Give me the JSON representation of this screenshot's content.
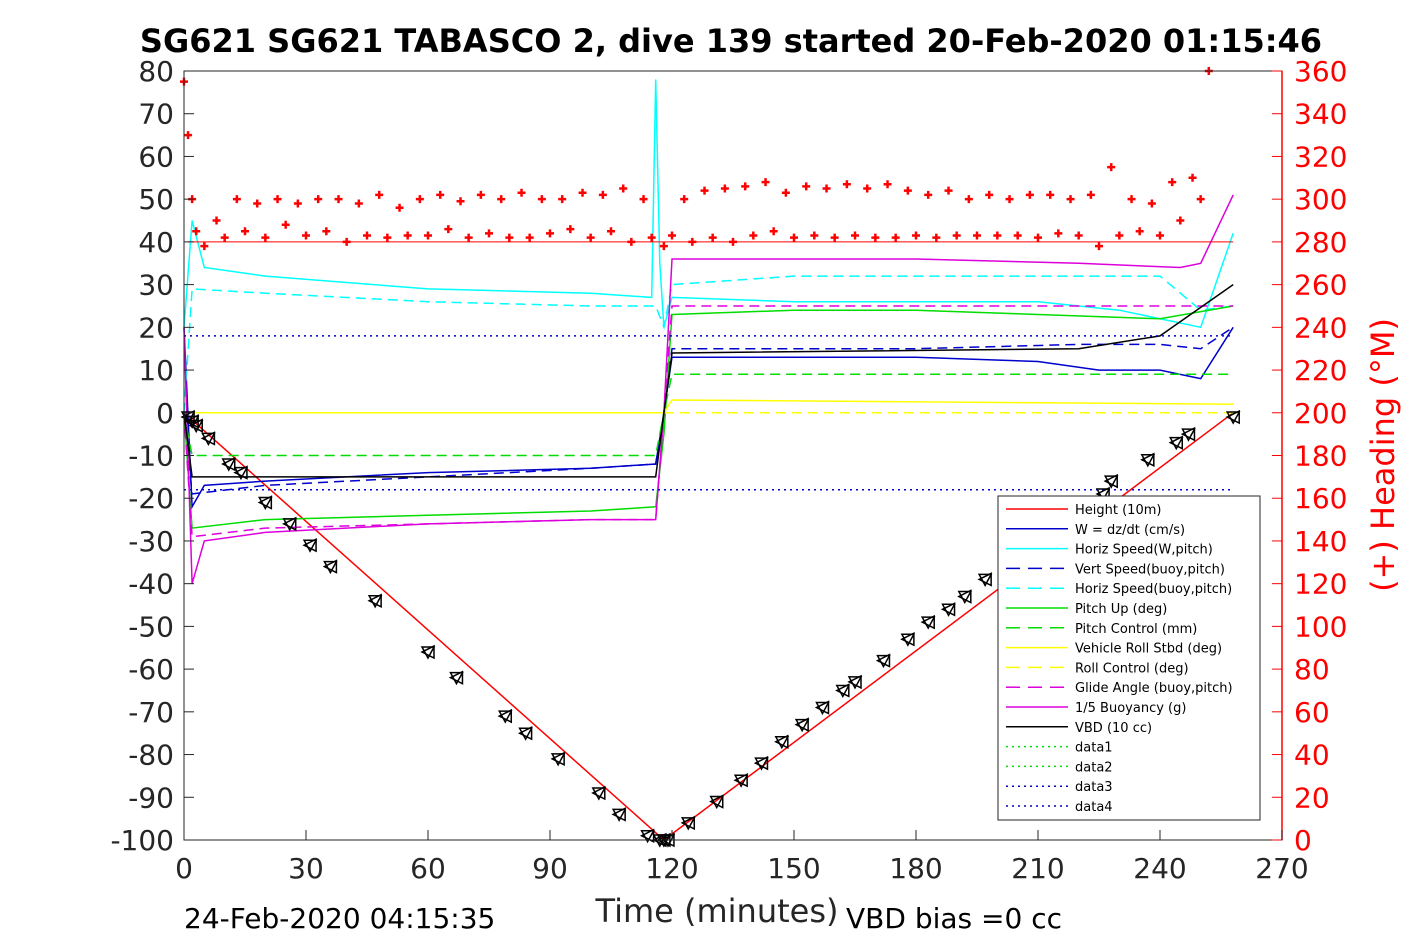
{
  "chart_data": {
    "type": "line",
    "title": "SG621 SG621 TABASCO 2, dive 139 started 20-Feb-2020 01:15:46",
    "xlabel": "Time (minutes)",
    "ylabel_left": "",
    "ylabel_right": "(+) Heading (°M)",
    "xlim": [
      0,
      270
    ],
    "ylim_left": [
      -100,
      80
    ],
    "ylim_right": [
      0,
      360
    ],
    "x_ticks": [
      "0",
      "30",
      "60",
      "90",
      "120",
      "150",
      "180",
      "210",
      "240",
      "270"
    ],
    "y_ticks_left": [
      "80",
      "70",
      "60",
      "50",
      "40",
      "30",
      "20",
      "10",
      "0",
      "-10",
      "-20",
      "-30",
      "-40",
      "-50",
      "-60",
      "-70",
      "-80",
      "-90",
      "-100"
    ],
    "y_ticks_right": [
      "360",
      "340",
      "320",
      "300",
      "280",
      "260",
      "240",
      "220",
      "200",
      "180",
      "160",
      "140",
      "120",
      "100",
      "80",
      "60",
      "40",
      "20",
      "0"
    ],
    "grid": false,
    "legend_position": "lower-right",
    "footer_left": "24-Feb-2020 04:15:35",
    "footer_right": "VBD bias =0 cc",
    "series": [
      {
        "name": "Height (10m)",
        "color": "#ff0000",
        "style": "solid",
        "x": [
          0,
          118,
          258
        ],
        "y": [
          0,
          -100,
          0
        ]
      },
      {
        "name": "W = dz/dt (cm/s)",
        "color": "#0000cc",
        "style": "solid",
        "x": [
          0,
          2,
          5,
          20,
          60,
          100,
          116,
          118,
          120,
          150,
          180,
          210,
          225,
          240,
          250,
          258
        ],
        "y": [
          20,
          -22,
          -17,
          -16,
          -14,
          -13,
          -12,
          0,
          13,
          13,
          13,
          12,
          10,
          10,
          8,
          20
        ]
      },
      {
        "name": "Horiz Speed(W,pitch)",
        "color": "#00ffff",
        "style": "solid",
        "x": [
          0,
          2,
          5,
          20,
          60,
          100,
          115,
          116,
          117,
          118,
          120,
          150,
          180,
          210,
          230,
          250,
          258
        ],
        "y": [
          20,
          45,
          34,
          32,
          29,
          28,
          27,
          78,
          35,
          20,
          27,
          26,
          26,
          26,
          24,
          20,
          42
        ]
      },
      {
        "name": "Vert Speed(buoy,pitch)",
        "color": "#0000cc",
        "style": "dashed",
        "x": [
          0,
          2,
          20,
          60,
          100,
          116,
          118,
          120,
          180,
          220,
          240,
          250,
          258
        ],
        "y": [
          0,
          -19,
          -17,
          -15,
          -13,
          -12,
          0,
          15,
          15,
          16,
          16,
          15,
          20
        ]
      },
      {
        "name": "Horiz Speed(buoy,pitch)",
        "color": "#00ffff",
        "style": "dashed",
        "x": [
          0,
          2,
          20,
          60,
          100,
          116,
          118,
          120,
          150,
          180,
          220,
          240,
          250,
          258
        ],
        "y": [
          0,
          29,
          28,
          26,
          25,
          25,
          20,
          30,
          32,
          32,
          32,
          32,
          24,
          25
        ]
      },
      {
        "name": "Pitch Up (deg)",
        "color": "#00dd00",
        "style": "solid",
        "x": [
          0,
          2,
          20,
          60,
          100,
          116,
          118,
          120,
          150,
          180,
          210,
          240,
          258
        ],
        "y": [
          0,
          -27,
          -25,
          -24,
          -23,
          -22,
          -5,
          23,
          24,
          24,
          23,
          22,
          25
        ]
      },
      {
        "name": "Pitch Control (mm)",
        "color": "#00dd00",
        "style": "dashed",
        "x": [
          0,
          2,
          116,
          118,
          120,
          258
        ],
        "y": [
          0,
          -10,
          -10,
          0,
          9,
          9
        ]
      },
      {
        "name": "Vehicle Roll Stbd (deg)",
        "color": "#ffff00",
        "style": "solid",
        "x": [
          0,
          2,
          116,
          118,
          120,
          258
        ],
        "y": [
          0,
          0,
          0,
          0,
          3,
          2
        ]
      },
      {
        "name": "Roll Control (deg)",
        "color": "#ffff00",
        "style": "dashed",
        "x": [
          0,
          2,
          116,
          118,
          120,
          258
        ],
        "y": [
          0,
          0,
          0,
          0,
          0,
          0
        ]
      },
      {
        "name": "Glide Angle (buoy,pitch)",
        "color": "#dd00dd",
        "style": "dashed",
        "x": [
          0,
          2,
          20,
          60,
          100,
          116,
          118,
          120,
          180,
          240,
          258
        ],
        "y": [
          0,
          -29,
          -27,
          -26,
          -25,
          -25,
          0,
          25,
          25,
          25,
          25
        ]
      },
      {
        "name": "1/5 Buoyancy (g)",
        "color": "#dd00dd",
        "style": "solid",
        "x": [
          0,
          2,
          5,
          20,
          60,
          100,
          116,
          118,
          120,
          180,
          220,
          245,
          250,
          258
        ],
        "y": [
          20,
          -40,
          -30,
          -28,
          -26,
          -25,
          -25,
          0,
          36,
          36,
          35,
          34,
          35,
          51
        ]
      },
      {
        "name": "VBD (10 cc)",
        "color": "#000000",
        "style": "solid",
        "x": [
          0,
          2,
          116,
          118,
          120,
          220,
          240,
          258
        ],
        "y": [
          0,
          -15,
          -15,
          0,
          14,
          15,
          18,
          30
        ]
      },
      {
        "name": "data1",
        "color": "#00dd00",
        "style": "dotted",
        "x": [],
        "y": []
      },
      {
        "name": "data2",
        "color": "#00dd00",
        "style": "dotted",
        "x": [],
        "y": []
      },
      {
        "name": "data3",
        "color": "#0000cc",
        "style": "dotted",
        "x": [
          0,
          258
        ],
        "y": [
          18,
          18
        ]
      },
      {
        "name": "data4",
        "color": "#0000cc",
        "style": "dotted",
        "x": [
          0,
          258
        ],
        "y": [
          -18,
          -18
        ]
      }
    ],
    "heading_reference": {
      "color": "#ff0000",
      "value": 280
    },
    "heading_points": {
      "axis": "right",
      "color": "#ff0000",
      "marker": "+",
      "x": [
        0,
        1,
        2,
        3,
        5,
        8,
        10,
        13,
        15,
        18,
        20,
        23,
        25,
        28,
        30,
        33,
        35,
        38,
        40,
        43,
        45,
        48,
        50,
        53,
        55,
        58,
        60,
        63,
        65,
        68,
        70,
        73,
        75,
        78,
        80,
        83,
        85,
        88,
        90,
        93,
        95,
        98,
        100,
        103,
        105,
        108,
        110,
        113,
        115,
        118,
        120,
        123,
        125,
        128,
        130,
        133,
        135,
        138,
        140,
        143,
        145,
        148,
        150,
        153,
        155,
        158,
        160,
        163,
        165,
        168,
        170,
        173,
        175,
        178,
        180,
        183,
        185,
        188,
        190,
        193,
        195,
        198,
        200,
        203,
        205,
        208,
        210,
        213,
        215,
        218,
        220,
        223,
        225,
        228,
        230,
        233,
        235,
        238,
        240,
        243,
        245,
        248,
        250,
        252
      ],
      "y": [
        355,
        330,
        300,
        285,
        278,
        290,
        282,
        300,
        285,
        298,
        282,
        300,
        288,
        298,
        283,
        300,
        285,
        300,
        280,
        298,
        283,
        302,
        282,
        296,
        283,
        300,
        283,
        302,
        286,
        299,
        282,
        302,
        284,
        300,
        282,
        303,
        282,
        300,
        284,
        300,
        286,
        303,
        282,
        302,
        285,
        305,
        280,
        300,
        282,
        278,
        283,
        300,
        280,
        304,
        282,
        305,
        280,
        306,
        283,
        308,
        285,
        303,
        282,
        306,
        283,
        305,
        282,
        307,
        283,
        305,
        282,
        307,
        282,
        304,
        283,
        302,
        282,
        304,
        283,
        300,
        283,
        302,
        283,
        300,
        283,
        302,
        282,
        302,
        284,
        300,
        283,
        302,
        278,
        315,
        283,
        300,
        285,
        298,
        283,
        308,
        290,
        310,
        300,
        360
      ]
    },
    "markers": {
      "color": "#000000",
      "shapes": [
        "triangle-down",
        "triangle-left"
      ],
      "x": [
        1,
        2,
        3,
        6,
        11,
        14,
        20,
        26,
        31,
        36,
        47,
        60,
        67,
        79,
        84,
        92,
        102,
        107,
        114,
        117,
        118,
        119,
        124,
        131,
        137,
        142,
        147,
        152,
        157,
        162,
        165,
        172,
        178,
        183,
        188,
        192,
        197,
        226,
        228,
        237,
        244,
        247,
        258
      ],
      "y": [
        -1,
        -2,
        -3,
        -6,
        -12,
        -14,
        -21,
        -26,
        -31,
        -36,
        -44,
        -56,
        -62,
        -71,
        -75,
        -81,
        -89,
        -94,
        -99,
        -100,
        -100,
        -100,
        -96,
        -91,
        -86,
        -82,
        -77,
        -73,
        -69,
        -65,
        -63,
        -58,
        -53,
        -49,
        -46,
        -43,
        -39,
        -19,
        -16,
        -11,
        -7,
        -5,
        -1
      ]
    }
  }
}
